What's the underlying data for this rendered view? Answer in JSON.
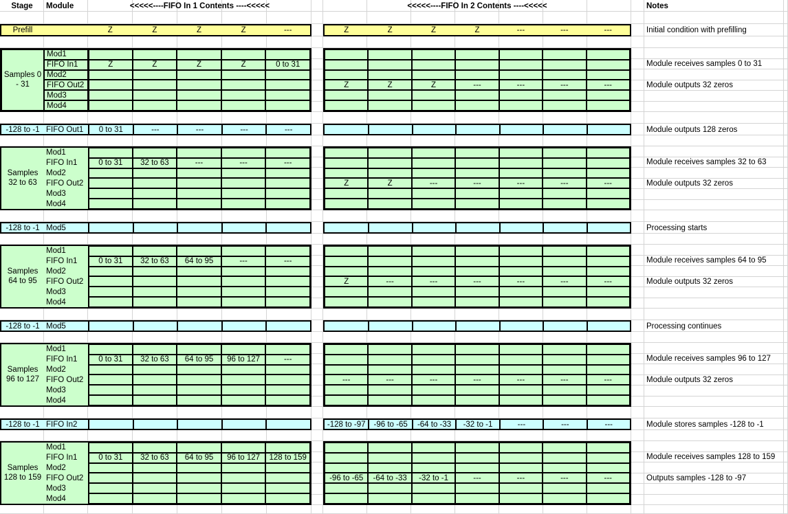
{
  "colors": {
    "prefill_yellow": "#FFFF99",
    "block_green": "#CCFFCC",
    "bar_blue": "#CCFFFF",
    "grid_line": "#D4D4D4",
    "block_border": "#000000"
  },
  "header": {
    "stage": "Stage",
    "module": "Module",
    "fifo1": "<<<<<----FIFO In 1 Contents ----<<<<<",
    "fifo2": "<<<<<----FIFO In 2 Contents ----<<<<<",
    "notes": "Notes"
  },
  "prefill": {
    "stage": "Prefill",
    "fifo1": [
      "Z",
      "Z",
      "Z",
      "Z",
      "---"
    ],
    "fifo2": [
      "Z",
      "Z",
      "Z",
      "Z",
      "---",
      "---",
      "---"
    ],
    "note": "Initial condition with prefilling"
  },
  "sections": [
    {
      "type": "block",
      "stage": [
        "Samples 0",
        "- 31"
      ],
      "boxed_labels": true,
      "modules": [
        "Mod1",
        "FIFO In1",
        "Mod2",
        "FIFO Out2",
        "Mod3",
        "Mod4"
      ],
      "fifo1_rows": [
        [
          "",
          "",
          "",
          "",
          ""
        ],
        [
          "Z",
          "Z",
          "Z",
          "Z",
          "0 to 31"
        ],
        [
          "",
          "",
          "",
          "",
          ""
        ],
        [
          "",
          "",
          "",
          "",
          ""
        ],
        [
          "",
          "",
          "",
          "",
          ""
        ],
        [
          "",
          "",
          "",
          "",
          ""
        ]
      ],
      "fifo2_rows": [
        [
          "",
          "",
          "",
          "",
          "",
          "",
          ""
        ],
        [
          "",
          "",
          "",
          "",
          "",
          "",
          ""
        ],
        [
          "",
          "",
          "",
          "",
          "",
          "",
          ""
        ],
        [
          "Z",
          "Z",
          "Z",
          "---",
          "---",
          "---",
          "---"
        ],
        [
          "",
          "",
          "",
          "",
          "",
          "",
          ""
        ],
        [
          "",
          "",
          "",
          "",
          "",
          "",
          ""
        ]
      ],
      "notes": [
        "",
        "Module receives samples 0 to 31",
        "",
        "Module outputs 32 zeros",
        "",
        ""
      ]
    },
    {
      "type": "bar",
      "stage": "-128 to -1",
      "module": "FIFO Out1",
      "fifo1": [
        "0 to 31",
        "---",
        "---",
        "---",
        "---"
      ],
      "fifo2": [
        "",
        "",
        "",
        "",
        "",
        "",
        ""
      ],
      "note": "Module outputs 128 zeros"
    },
    {
      "type": "block",
      "stage": [
        "Samples",
        "32 to 63"
      ],
      "boxed_labels": false,
      "modules": [
        "Mod1",
        "FIFO In1",
        "Mod2",
        "FIFO Out2",
        "Mod3",
        "Mod4"
      ],
      "fifo1_rows": [
        [
          "",
          "",
          "",
          "",
          ""
        ],
        [
          "0 to 31",
          "32 to 63",
          "---",
          "---",
          "---"
        ],
        [
          "",
          "",
          "",
          "",
          ""
        ],
        [
          "",
          "",
          "",
          "",
          ""
        ],
        [
          "",
          "",
          "",
          "",
          ""
        ],
        [
          "",
          "",
          "",
          "",
          ""
        ]
      ],
      "fifo2_rows": [
        [
          "",
          "",
          "",
          "",
          "",
          "",
          ""
        ],
        [
          "",
          "",
          "",
          "",
          "",
          "",
          ""
        ],
        [
          "",
          "",
          "",
          "",
          "",
          "",
          ""
        ],
        [
          "Z",
          "Z",
          "---",
          "---",
          "---",
          "---",
          "---"
        ],
        [
          "",
          "",
          "",
          "",
          "",
          "",
          ""
        ],
        [
          "",
          "",
          "",
          "",
          "",
          "",
          ""
        ]
      ],
      "notes": [
        "",
        "Module receives samples 32 to 63",
        "",
        "Module outputs 32 zeros",
        "",
        ""
      ]
    },
    {
      "type": "bar",
      "stage": "-128 to -1",
      "module": "Mod5",
      "fifo1": [
        "",
        "",
        "",
        "",
        ""
      ],
      "fifo2": [
        "",
        "",
        "",
        "",
        "",
        "",
        ""
      ],
      "note": "Processing starts"
    },
    {
      "type": "block",
      "stage": [
        "Samples",
        "64 to 95"
      ],
      "boxed_labels": false,
      "modules": [
        "Mod1",
        "FIFO In1",
        "Mod2",
        "FIFO Out2",
        "Mod3",
        "Mod4"
      ],
      "fifo1_rows": [
        [
          "",
          "",
          "",
          "",
          ""
        ],
        [
          "0 to 31",
          "32 to 63",
          "64 to 95",
          "---",
          "---"
        ],
        [
          "",
          "",
          "",
          "",
          ""
        ],
        [
          "",
          "",
          "",
          "",
          ""
        ],
        [
          "",
          "",
          "",
          "",
          ""
        ],
        [
          "",
          "",
          "",
          "",
          ""
        ]
      ],
      "fifo2_rows": [
        [
          "",
          "",
          "",
          "",
          "",
          "",
          ""
        ],
        [
          "",
          "",
          "",
          "",
          "",
          "",
          ""
        ],
        [
          "",
          "",
          "",
          "",
          "",
          "",
          ""
        ],
        [
          "Z",
          "---",
          "---",
          "---",
          "---",
          "---",
          "---"
        ],
        [
          "",
          "",
          "",
          "",
          "",
          "",
          ""
        ],
        [
          "",
          "",
          "",
          "",
          "",
          "",
          ""
        ]
      ],
      "notes": [
        "",
        "Module receives samples 64 to 95",
        "",
        "Module outputs 32 zeros",
        "",
        ""
      ]
    },
    {
      "type": "bar",
      "stage": "-128 to -1",
      "module": "Mod5",
      "fifo1": [
        "",
        "",
        "",
        "",
        ""
      ],
      "fifo2": [
        "",
        "",
        "",
        "",
        "",
        "",
        ""
      ],
      "note": "Processing continues"
    },
    {
      "type": "block",
      "stage": [
        "Samples",
        "96 to 127"
      ],
      "boxed_labels": false,
      "modules": [
        "Mod1",
        "FIFO In1",
        "Mod2",
        "FIFO Out2",
        "Mod3",
        "Mod4"
      ],
      "fifo1_rows": [
        [
          "",
          "",
          "",
          "",
          ""
        ],
        [
          "0 to 31",
          "32 to 63",
          "64 to 95",
          "96 to 127",
          "---"
        ],
        [
          "",
          "",
          "",
          "",
          ""
        ],
        [
          "",
          "",
          "",
          "",
          ""
        ],
        [
          "",
          "",
          "",
          "",
          ""
        ],
        [
          "",
          "",
          "",
          "",
          ""
        ]
      ],
      "fifo2_rows": [
        [
          "",
          "",
          "",
          "",
          "",
          "",
          ""
        ],
        [
          "",
          "",
          "",
          "",
          "",
          "",
          ""
        ],
        [
          "",
          "",
          "",
          "",
          "",
          "",
          ""
        ],
        [
          "---",
          "---",
          "---",
          "---",
          "---",
          "---",
          "---"
        ],
        [
          "",
          "",
          "",
          "",
          "",
          "",
          ""
        ],
        [
          "",
          "",
          "",
          "",
          "",
          "",
          ""
        ]
      ],
      "notes": [
        "",
        "Module receives samples 96 to 127",
        "",
        "Module outputs 32 zeros",
        "",
        ""
      ]
    },
    {
      "type": "bar",
      "stage": "-128 to -1",
      "module": "FIFO In2",
      "fifo1": [
        "",
        "",
        "",
        "",
        ""
      ],
      "fifo2": [
        "-128 to -97",
        "-96 to -65",
        "-64 to -33",
        "-32 to -1",
        "---",
        "---",
        "---"
      ],
      "note": "Module stores samples -128 to -1"
    },
    {
      "type": "block",
      "stage": [
        "Samples",
        "128 to 159"
      ],
      "boxed_labels": false,
      "modules": [
        "Mod1",
        "FIFO In1",
        "Mod2",
        "FIFO Out2",
        "Mod3",
        "Mod4"
      ],
      "fifo1_rows": [
        [
          "",
          "",
          "",
          "",
          ""
        ],
        [
          "0 to 31",
          "32 to 63",
          "64 to 95",
          "96 to 127",
          "128 to 159"
        ],
        [
          "",
          "",
          "",
          "",
          ""
        ],
        [
          "",
          "",
          "",
          "",
          ""
        ],
        [
          "",
          "",
          "",
          "",
          ""
        ],
        [
          "",
          "",
          "",
          "",
          ""
        ]
      ],
      "fifo2_rows": [
        [
          "",
          "",
          "",
          "",
          "",
          "",
          ""
        ],
        [
          "",
          "",
          "",
          "",
          "",
          "",
          ""
        ],
        [
          "",
          "",
          "",
          "",
          "",
          "",
          ""
        ],
        [
          "-96 to -65",
          "-64 to -33",
          "-32 to -1",
          "---",
          "---",
          "---",
          "---"
        ],
        [
          "",
          "",
          "",
          "",
          "",
          "",
          ""
        ],
        [
          "",
          "",
          "",
          "",
          "",
          "",
          ""
        ]
      ],
      "notes": [
        "",
        "Module receives samples 128 to 159",
        "",
        "Outputs samples -128 to -97",
        "",
        ""
      ]
    }
  ]
}
